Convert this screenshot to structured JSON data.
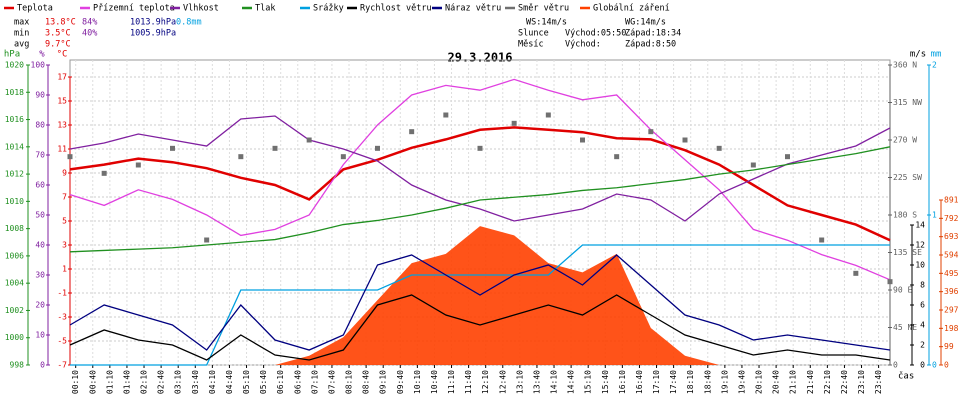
{
  "chart_data": {
    "type": "line",
    "title": "29.3.2016",
    "x_label": "čas",
    "xlim": [
      0,
      1440
    ],
    "x": [
      0,
      60,
      120,
      180,
      240,
      300,
      360,
      420,
      480,
      540,
      600,
      660,
      720,
      780,
      840,
      900,
      960,
      1020,
      1080,
      1140,
      1200,
      1260,
      1320,
      1380,
      1440
    ],
    "xticks": [
      {
        "value": 10,
        "label": "00:10"
      },
      {
        "value": 40,
        "label": "00:40"
      },
      {
        "value": 70,
        "label": "01:10"
      },
      {
        "value": 100,
        "label": "01:40"
      },
      {
        "value": 130,
        "label": "02:10"
      },
      {
        "value": 160,
        "label": "02:40"
      },
      {
        "value": 190,
        "label": "03:10"
      },
      {
        "value": 220,
        "label": "03:40"
      },
      {
        "value": 250,
        "label": "04:10"
      },
      {
        "value": 280,
        "label": "04:40"
      },
      {
        "value": 310,
        "label": "05:10"
      },
      {
        "value": 340,
        "label": "05:40"
      },
      {
        "value": 370,
        "label": "06:10"
      },
      {
        "value": 400,
        "label": "06:40"
      },
      {
        "value": 430,
        "label": "07:10"
      },
      {
        "value": 460,
        "label": "07:40"
      },
      {
        "value": 490,
        "label": "08:10"
      },
      {
        "value": 520,
        "label": "08:40"
      },
      {
        "value": 550,
        "label": "09:10"
      },
      {
        "value": 580,
        "label": "09:40"
      },
      {
        "value": 610,
        "label": "10:10"
      },
      {
        "value": 640,
        "label": "10:40"
      },
      {
        "value": 670,
        "label": "11:10"
      },
      {
        "value": 700,
        "label": "11:40"
      },
      {
        "value": 730,
        "label": "12:10"
      },
      {
        "value": 760,
        "label": "12:40"
      },
      {
        "value": 790,
        "label": "13:10"
      },
      {
        "value": 820,
        "label": "13:40"
      },
      {
        "value": 850,
        "label": "14:10"
      },
      {
        "value": 880,
        "label": "14:40"
      },
      {
        "value": 910,
        "label": "15:10"
      },
      {
        "value": 940,
        "label": "15:40"
      },
      {
        "value": 970,
        "label": "16:10"
      },
      {
        "value": 1000,
        "label": "16:40"
      },
      {
        "value": 1030,
        "label": "17:10"
      },
      {
        "value": 1060,
        "label": "17:40"
      },
      {
        "value": 1090,
        "label": "18:10"
      },
      {
        "value": 1120,
        "label": "18:40"
      },
      {
        "value": 1150,
        "label": "19:10"
      },
      {
        "value": 1180,
        "label": "19:40"
      },
      {
        "value": 1210,
        "label": "20:10"
      },
      {
        "value": 1240,
        "label": "20:40"
      },
      {
        "value": 1270,
        "label": "21:10"
      },
      {
        "value": 1300,
        "label": "21:40"
      },
      {
        "value": 1330,
        "label": "22:10"
      },
      {
        "value": 1360,
        "label": "22:40"
      },
      {
        "value": 1390,
        "label": "23:10"
      },
      {
        "value": 1420,
        "label": "23:40"
      }
    ],
    "grid": true,
    "axes": {
      "hpa": {
        "label": "hPa",
        "color": "#209020",
        "side": "left",
        "lim": [
          998,
          1020
        ],
        "ticks": [
          998,
          1000,
          1002,
          1004,
          1006,
          1008,
          1010,
          1012,
          1014,
          1016,
          1018,
          1020
        ]
      },
      "pct": {
        "label": "%",
        "color": "#8020a0",
        "side": "left",
        "lim": [
          0,
          100
        ],
        "ticks": [
          0,
          10,
          20,
          30,
          40,
          50,
          60,
          70,
          80,
          90,
          100
        ]
      },
      "temp": {
        "label": "°C",
        "color": "#e00000",
        "side": "left",
        "lim": [
          -7,
          18
        ],
        "ticks": [
          -7,
          -5,
          -3,
          -1,
          1,
          3,
          5,
          7,
          9,
          11,
          13,
          15,
          17
        ]
      },
      "dir": {
        "color": "#606060",
        "side": "right",
        "lim": [
          0,
          360
        ],
        "ticks": [
          {
            "value": 0,
            "label": "0"
          },
          {
            "value": 45,
            "label": "45 NE"
          },
          {
            "value": 90,
            "label": "90 E"
          },
          {
            "value": 135,
            "label": "135 SE"
          },
          {
            "value": 180,
            "label": "180 S"
          },
          {
            "value": 225,
            "label": "225 SW"
          },
          {
            "value": 270,
            "label": "270 W"
          },
          {
            "value": 315,
            "label": "315 NW"
          },
          {
            "value": 360,
            "label": "360 N"
          }
        ]
      },
      "ms": {
        "label": "m/s",
        "color": "#000000",
        "side": "right",
        "lim": [
          0,
          30
        ],
        "ticks": [
          0,
          2,
          4,
          6,
          8,
          10,
          12,
          14
        ]
      },
      "mm": {
        "label": "mm",
        "color": "#00a0e0",
        "side": "right",
        "lim": [
          0,
          2
        ],
        "ticks": [
          0,
          1,
          2
        ]
      },
      "rad": {
        "color": "#e04000",
        "side": "right",
        "lim": [
          0,
          1620
        ],
        "ticks": [
          0,
          99,
          198,
          297,
          396,
          495,
          594,
          693,
          792,
          891
        ]
      }
    },
    "series": [
      {
        "name": "Teplota",
        "color": "#e00000",
        "axis": "temp",
        "kind": "line",
        "values": [
          9.3,
          9.7,
          10.2,
          9.9,
          9.4,
          8.6,
          8,
          6.8,
          9.3,
          10.1,
          11.1,
          11.8,
          12.6,
          12.8,
          12.6,
          12.4,
          11.9,
          11.8,
          10.9,
          9.7,
          8,
          6.3,
          5.5,
          4.7,
          3.4
        ]
      },
      {
        "name": "Přízemní teplota",
        "color": "#e040e0",
        "axis": "temp",
        "kind": "line",
        "values": [
          7.2,
          6.3,
          7.6,
          6.8,
          5.5,
          3.8,
          4.3,
          5.5,
          9.7,
          13,
          15.5,
          16.3,
          15.9,
          16.8,
          15.9,
          15.1,
          15.5,
          12.6,
          10.1,
          7.6,
          4.3,
          3.4,
          2.2,
          1.3,
          0.1
        ]
      },
      {
        "name": "Vlhkost",
        "color": "#8020a0",
        "axis": "pct",
        "kind": "line",
        "values": [
          72,
          74,
          77,
          75,
          73,
          82,
          83,
          75,
          72,
          68,
          60,
          55,
          52,
          48,
          50,
          52,
          57,
          55,
          48,
          57,
          62,
          67,
          70,
          73,
          79
        ]
      },
      {
        "name": "Tlak",
        "color": "#209020",
        "axis": "hpa",
        "kind": "line",
        "values": [
          1006.3,
          1006.4,
          1006.5,
          1006.6,
          1006.8,
          1007,
          1007.2,
          1007.7,
          1008.3,
          1008.6,
          1009,
          1009.5,
          1010.1,
          1010.3,
          1010.5,
          1010.8,
          1011,
          1011.3,
          1011.6,
          1012,
          1012.3,
          1012.7,
          1013.1,
          1013.5,
          1014
        ]
      },
      {
        "name": "Srážky",
        "color": "#00a0e0",
        "axis": "mm",
        "kind": "line",
        "values": [
          0,
          0,
          0,
          0,
          0,
          0.5,
          0.5,
          0.5,
          0.5,
          0.5,
          0.6,
          0.6,
          0.6,
          0.6,
          0.6,
          0.8,
          0.8,
          0.8,
          0.8,
          0.8,
          0.8,
          0.8,
          0.8,
          0.8,
          0.8
        ]
      },
      {
        "name": "Rychlost větru",
        "color": "#000000",
        "axis": "ms",
        "kind": "line",
        "values": [
          2,
          3.5,
          2.5,
          2,
          0.5,
          3,
          1,
          0.5,
          1.5,
          6,
          7,
          5,
          4,
          5,
          6,
          5,
          7,
          5,
          3,
          2,
          1,
          1.5,
          1,
          1,
          0.5
        ]
      },
      {
        "name": "Náraz větru",
        "color": "#000080",
        "axis": "ms",
        "kind": "line",
        "values": [
          4,
          6,
          5,
          4,
          1.5,
          6,
          2.5,
          1.5,
          3,
          10,
          11,
          9,
          7,
          9,
          10,
          8,
          11,
          8,
          5,
          4,
          2.5,
          3,
          2.5,
          2,
          1.5
        ]
      },
      {
        "name": "Směr větru",
        "color": "#707070",
        "axis": "dir",
        "kind": "scatter",
        "values": [
          250,
          230,
          240,
          260,
          150,
          250,
          260,
          270,
          250,
          260,
          280,
          300,
          260,
          290,
          300,
          270,
          250,
          280,
          270,
          260,
          240,
          250,
          150,
          110,
          100
        ]
      },
      {
        "name": "Globální záření",
        "color": "#ff4000",
        "axis": "rad",
        "kind": "area",
        "values": [
          0,
          0,
          0,
          0,
          0,
          0,
          0,
          50,
          150,
          350,
          550,
          600,
          750,
          700,
          550,
          500,
          600,
          200,
          50,
          0,
          0,
          0,
          0,
          0,
          0
        ]
      }
    ],
    "stats": [
      {
        "label": "max",
        "values": [
          "13.8°C",
          "84%",
          "1013.9hPa",
          "0.8mm"
        ]
      },
      {
        "label": "min",
        "values": [
          "3.5°C",
          "40%",
          "1005.9hPa"
        ]
      },
      {
        "label": "avg",
        "values": [
          "9.7°C"
        ]
      }
    ],
    "info": [
      "WS:14m/s",
      "WG:14m/s",
      "Slunce",
      "Východ:05:50",
      "Západ:18:34",
      "Měsíc",
      "Východ:",
      "Západ:8:50"
    ]
  }
}
